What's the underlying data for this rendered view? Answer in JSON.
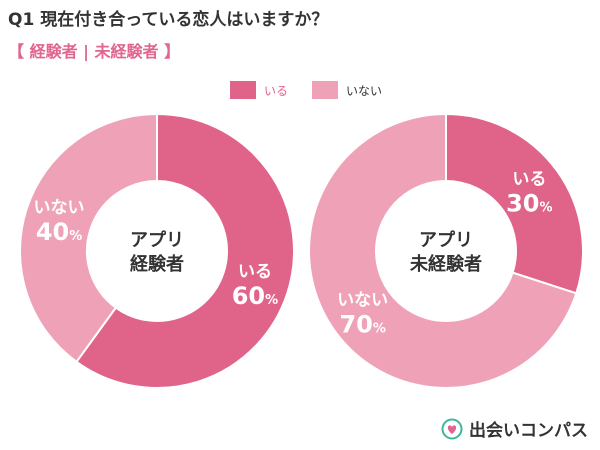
{
  "header": {
    "qnum": "Q1",
    "question": "現在付き合っている恋人はいますか？",
    "subtitle": "【 経験者 | 未経験者 】"
  },
  "legend": {
    "yes": "いる",
    "no": "いない"
  },
  "colors": {
    "yes": "#e0648a",
    "no": "#efa2b7",
    "accent": "#e0668e"
  },
  "brand": {
    "name": "出会いコンパス",
    "icon": "compass-heart-icon"
  },
  "chart_data": [
    {
      "type": "pie",
      "variant": "donut",
      "center_label": [
        "アプリ",
        "経験者"
      ],
      "categories": [
        "いる",
        "いない"
      ],
      "values": [
        60,
        40
      ],
      "unit": "%"
    },
    {
      "type": "pie",
      "variant": "donut",
      "center_label": [
        "アプリ",
        "未経験者"
      ],
      "categories": [
        "いる",
        "いない"
      ],
      "values": [
        30,
        70
      ],
      "unit": "%"
    }
  ]
}
